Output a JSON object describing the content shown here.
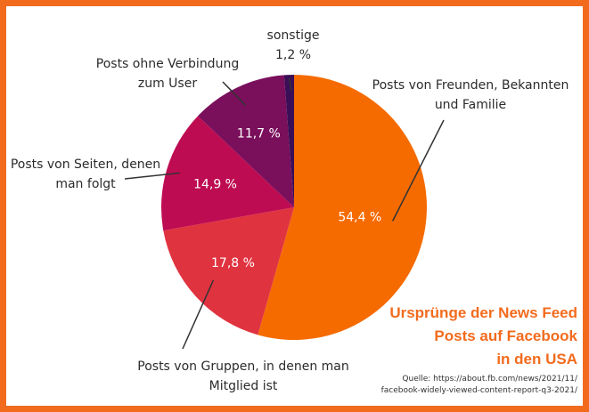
{
  "chart_data": {
    "type": "pie",
    "slices": [
      {
        "label_lines": [
          "Posts von Freunden, Bekannten",
          "und Familie"
        ],
        "value": 54.4,
        "value_label": "54,4 %",
        "color": "#f56b00"
      },
      {
        "label_lines": [
          "Posts von Gruppen, in denen man",
          "Mitglied ist"
        ],
        "value": 17.8,
        "value_label": "17,8 %",
        "color": "#e03340"
      },
      {
        "label_lines": [
          "Posts von Seiten, denen",
          "man folgt"
        ],
        "value": 14.9,
        "value_label": "14,9 %",
        "color": "#be0c52"
      },
      {
        "label_lines": [
          "Posts ohne Verbindung",
          "zum User"
        ],
        "value": 11.7,
        "value_label": "11,7 %",
        "color": "#7a0f5c"
      },
      {
        "label_lines": [
          "sonstige"
        ],
        "value": 1.2,
        "value_label": "1,2 %",
        "color": "#3a0f57"
      }
    ],
    "title_lines": [
      "Ursprünge der News Feed",
      "Posts auf Facebook",
      "in den USA"
    ],
    "source_lines": [
      "Quelle: https://about.fb.com/news/2021/11/",
      "facebook-widely-viewed-content-report-q3-2021/"
    ]
  }
}
